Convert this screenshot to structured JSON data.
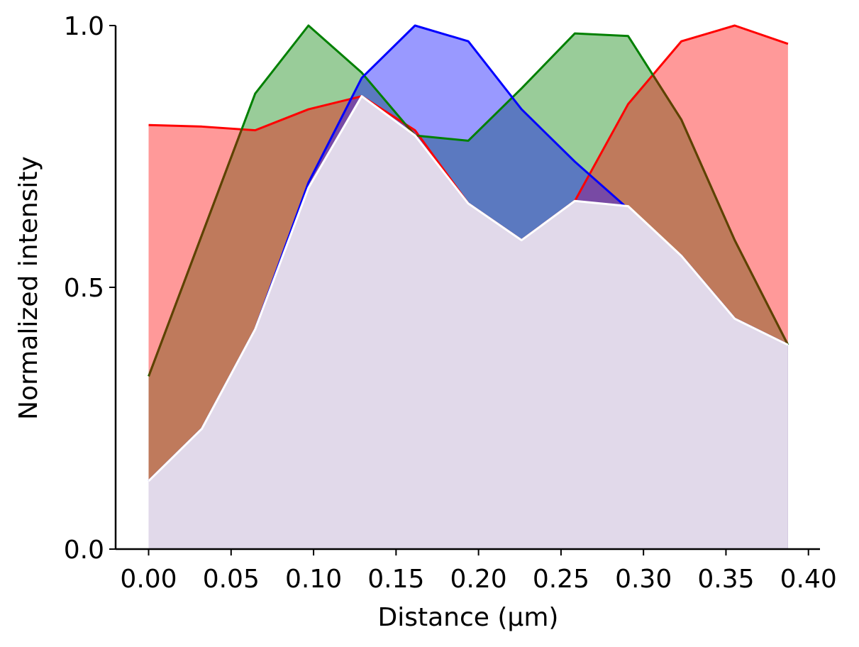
{
  "chart_data": {
    "type": "area",
    "xlabel": "Distance (µm)",
    "ylabel": "Normalized intensity",
    "xlim": [
      -0.02,
      0.407
    ],
    "ylim": [
      0,
      1
    ],
    "x_ticks": [
      "0.00",
      "0.05",
      "0.10",
      "0.15",
      "0.20",
      "0.25",
      "0.30",
      "0.35",
      "0.40"
    ],
    "y_ticks": [
      "0.0",
      "0.5",
      "1.0"
    ],
    "grid": false,
    "x": [
      0.0,
      0.0323,
      0.0646,
      0.0969,
      0.1292,
      0.1615,
      0.1938,
      0.2261,
      0.2584,
      0.2907,
      0.323,
      0.3553,
      0.3876
    ],
    "series": [
      {
        "color": "#008000",
        "fill": "#99cc99",
        "values": [
          0.33,
          0.6,
          0.87,
          1.0,
          0.91,
          0.79,
          0.78,
          0.88,
          0.985,
          0.98,
          0.82,
          0.59,
          0.39
        ]
      },
      {
        "color": "#0000ff",
        "fill": "#9999ff",
        "values": [
          0.13,
          0.23,
          0.42,
          0.7,
          0.9,
          1.0,
          0.97,
          0.84,
          0.74,
          0.65,
          0.56,
          0.44,
          0.39
        ]
      },
      {
        "color": "#ff0000",
        "fill": "#ff9999",
        "values": [
          0.81,
          0.807,
          0.8,
          0.84,
          0.865,
          0.8,
          0.66,
          0.59,
          0.665,
          0.85,
          0.97,
          1.0,
          0.965
        ]
      },
      {
        "color": "#ffffff",
        "fill": "#e1d9ea",
        "values": [
          0.13,
          0.23,
          0.42,
          0.69,
          0.865,
          0.79,
          0.66,
          0.59,
          0.665,
          0.655,
          0.56,
          0.44,
          0.39
        ]
      }
    ],
    "overlap_colors": {
      "red_green": "#bf7a5c",
      "green_blue": "#5b79c0",
      "red_blue": "#784aa4",
      "outline_dark": "#604000"
    }
  }
}
